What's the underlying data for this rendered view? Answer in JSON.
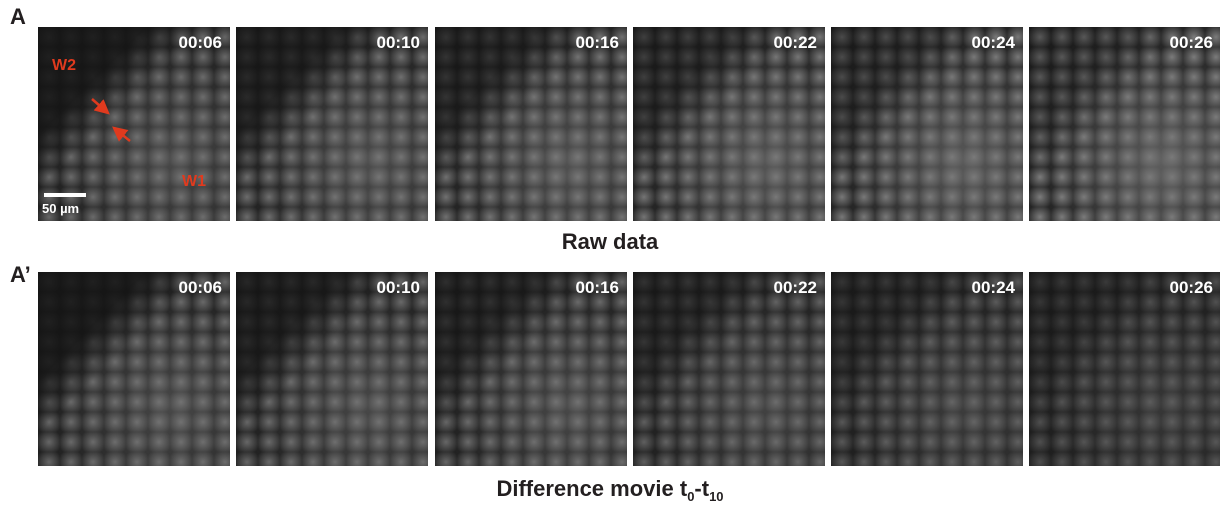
{
  "rows": [
    {
      "label": "A",
      "times": [
        "00:06",
        "00:10",
        "00:16",
        "00:22",
        "00:24",
        "00:26"
      ],
      "caption": "Raw data",
      "annotations": {
        "w2": "W2",
        "w1": "W1",
        "scale_bar": "50 µm"
      }
    },
    {
      "label": "A’",
      "times": [
        "00:06",
        "00:10",
        "00:16",
        "00:22",
        "00:24",
        "00:26"
      ],
      "caption": {
        "prefix": "Difference movie t",
        "sub_a": "0",
        "mid": "-t",
        "sub_b": "10"
      }
    }
  ]
}
